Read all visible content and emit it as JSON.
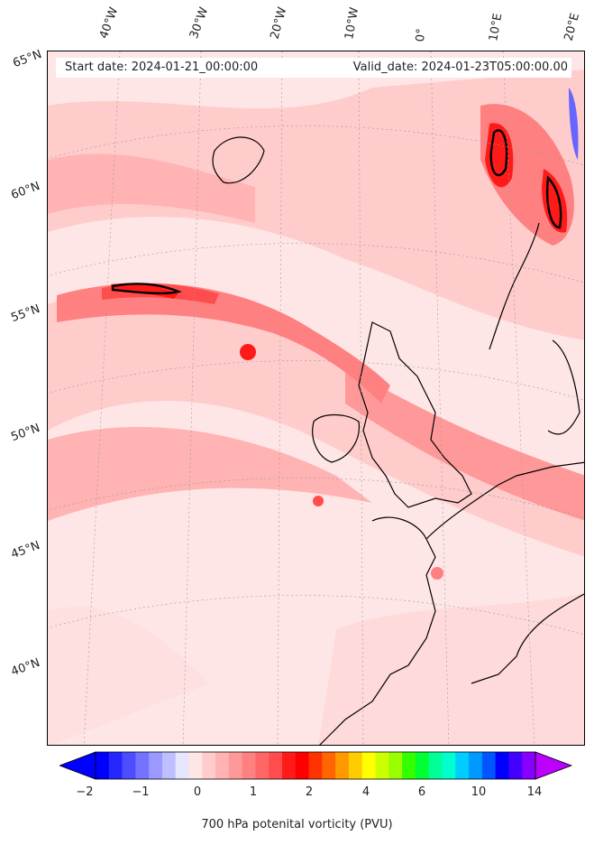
{
  "header": {
    "start_date": "Start date: 2024-01-21_00:00:00",
    "valid_date": "Valid_date: 2024-01-23T05:00:00.00"
  },
  "lon_labels": [
    "40°W",
    "30°W",
    "20°W",
    "10°W",
    "0°",
    "10°E",
    "20°E"
  ],
  "lat_labels": [
    "65°N",
    "60°N",
    "55°N",
    "50°N",
    "45°N",
    "40°N"
  ],
  "colorbar": {
    "title": "700 hPa potenital vorticity (PVU)",
    "ticks": [
      "−2",
      "−1",
      "0",
      "1",
      "2",
      "4",
      "6",
      "10",
      "14"
    ],
    "colors": [
      "#0000ff",
      "#2626ff",
      "#4d4dff",
      "#7373ff",
      "#9999ff",
      "#bfbfff",
      "#e6e6ff",
      "#ffe6e6",
      "#ffcccc",
      "#ffb3b3",
      "#ff9999",
      "#ff8080",
      "#ff6666",
      "#ff4d4d",
      "#ff1a1a",
      "#ff0000",
      "#ff3300",
      "#ff6600",
      "#ff9900",
      "#ffcc00",
      "#ffff00",
      "#ccff00",
      "#99ff00",
      "#33ff00",
      "#00ff33",
      "#00ff99",
      "#00ffcc",
      "#00ccff",
      "#0099ff",
      "#0055ff",
      "#0000ff",
      "#4400ff",
      "#8800ff"
    ],
    "min_color": "#0000ff",
    "max_color": "#bb00ff"
  }
}
